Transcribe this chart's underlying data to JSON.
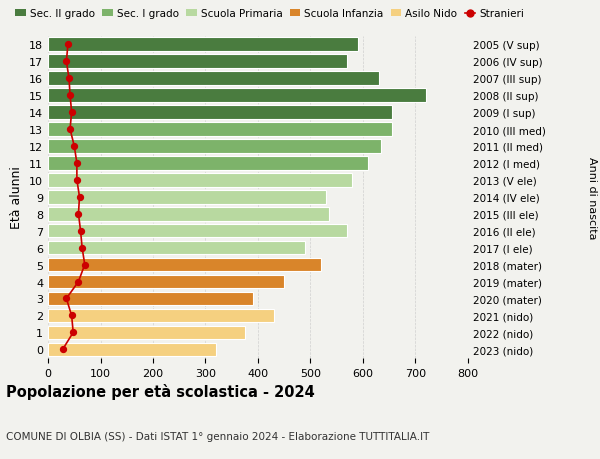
{
  "ages": [
    18,
    17,
    16,
    15,
    14,
    13,
    12,
    11,
    10,
    9,
    8,
    7,
    6,
    5,
    4,
    3,
    2,
    1,
    0
  ],
  "bar_values": [
    590,
    570,
    630,
    720,
    655,
    655,
    635,
    610,
    580,
    530,
    535,
    570,
    490,
    520,
    450,
    390,
    430,
    375,
    320
  ],
  "stranieri": [
    38,
    35,
    40,
    42,
    45,
    42,
    50,
    55,
    55,
    60,
    58,
    62,
    65,
    70,
    58,
    35,
    45,
    48,
    28
  ],
  "right_labels": [
    "2005 (V sup)",
    "2006 (IV sup)",
    "2007 (III sup)",
    "2008 (II sup)",
    "2009 (I sup)",
    "2010 (III med)",
    "2011 (II med)",
    "2012 (I med)",
    "2013 (V ele)",
    "2014 (IV ele)",
    "2015 (III ele)",
    "2016 (II ele)",
    "2017 (I ele)",
    "2018 (mater)",
    "2019 (mater)",
    "2020 (mater)",
    "2021 (nido)",
    "2022 (nido)",
    "2023 (nido)"
  ],
  "bar_colors": [
    "#4a7c3f",
    "#4a7c3f",
    "#4a7c3f",
    "#4a7c3f",
    "#4a7c3f",
    "#7db36a",
    "#7db36a",
    "#7db36a",
    "#b8d9a0",
    "#b8d9a0",
    "#b8d9a0",
    "#b8d9a0",
    "#b8d9a0",
    "#d9852a",
    "#d9852a",
    "#d9852a",
    "#f5d080",
    "#f5d080",
    "#f5d080"
  ],
  "legend_labels": [
    "Sec. II grado",
    "Sec. I grado",
    "Scuola Primaria",
    "Scuola Infanzia",
    "Asilo Nido",
    "Stranieri"
  ],
  "legend_colors": [
    "#4a7c3f",
    "#7db36a",
    "#b8d9a0",
    "#d9852a",
    "#f5d080",
    "#cc0000"
  ],
  "title": "Popolazione per età scolastica - 2024",
  "subtitle": "COMUNE DI OLBIA (SS) - Dati ISTAT 1° gennaio 2024 - Elaborazione TUTTITALIA.IT",
  "ylabel": "Età alunni",
  "right_ylabel": "Anni di nascita",
  "xlim": [
    0,
    800
  ],
  "xticks": [
    0,
    100,
    200,
    300,
    400,
    500,
    600,
    700,
    800
  ],
  "background_color": "#f2f2ee",
  "plot_bg": "#f2f2ee",
  "stranieri_color": "#cc0000"
}
